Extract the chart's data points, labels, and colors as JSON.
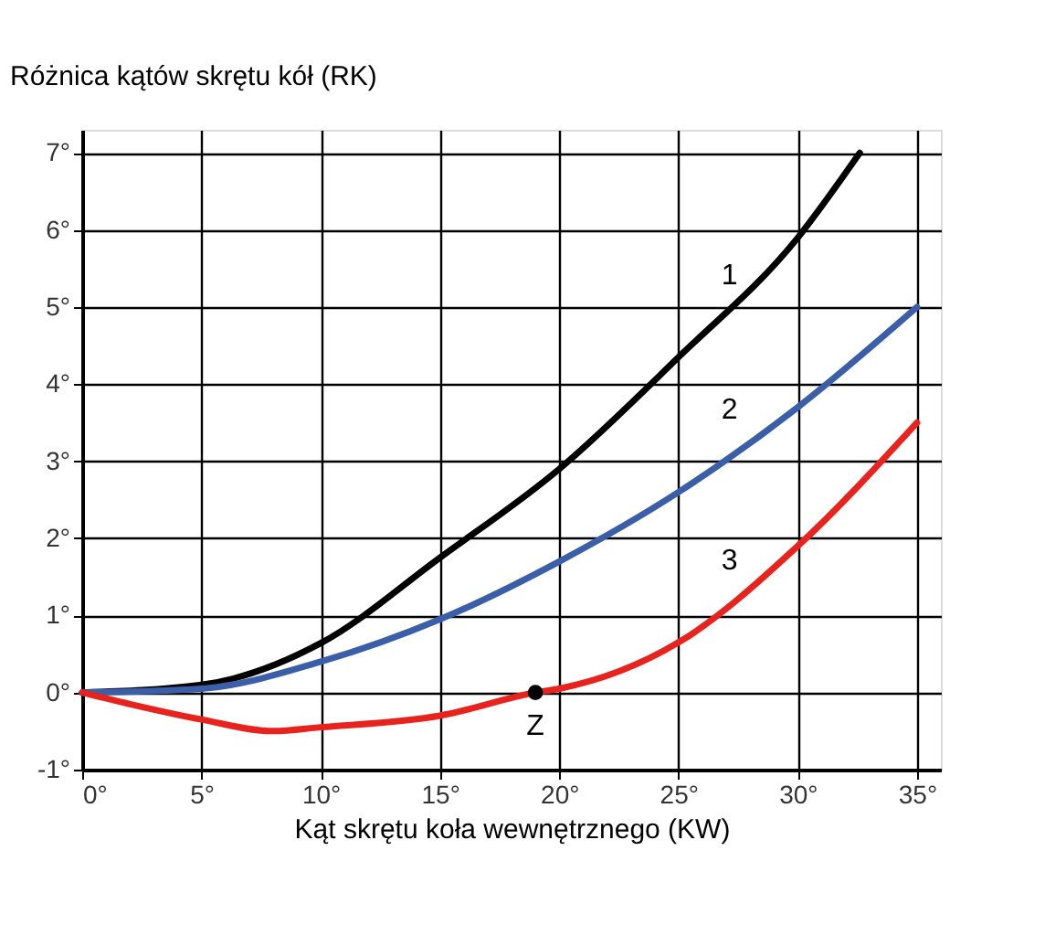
{
  "chart_data": {
    "type": "line",
    "xlabel": "Kąt skrętu koła wewnętrznego (KW)",
    "ylabel": "Różnica kątów skrętu kół (RK)",
    "xlim": [
      0,
      36
    ],
    "ylim": [
      -1,
      7.3
    ],
    "xticks": [
      {
        "value": 0,
        "label": "0°"
      },
      {
        "value": 5,
        "label": "5°"
      },
      {
        "value": 10,
        "label": "10°"
      },
      {
        "value": 15,
        "label": "15°"
      },
      {
        "value": 20,
        "label": "20°"
      },
      {
        "value": 25,
        "label": "25°"
      },
      {
        "value": 30,
        "label": "30°"
      },
      {
        "value": 35,
        "label": "35°"
      }
    ],
    "yticks": [
      {
        "value": -1,
        "label": "-1°"
      },
      {
        "value": 0,
        "label": "0°"
      },
      {
        "value": 1,
        "label": "1°"
      },
      {
        "value": 2,
        "label": "2°"
      },
      {
        "value": 3,
        "label": "3°"
      },
      {
        "value": 4,
        "label": "4°"
      },
      {
        "value": 5,
        "label": "5°"
      },
      {
        "value": 6,
        "label": "6°"
      },
      {
        "value": 7,
        "label": "7°"
      }
    ],
    "grid": true,
    "line_style": "solid",
    "marker": "none",
    "series": [
      {
        "name": "1",
        "color": "#000000",
        "x": [
          0,
          5,
          10,
          15,
          20,
          25,
          30,
          32.6
        ],
        "values": [
          0,
          0.1,
          0.64,
          1.75,
          2.9,
          4.35,
          5.9,
          7.0
        ]
      },
      {
        "name": "2",
        "color": "#3a5fa8",
        "x": [
          0,
          5,
          10,
          15,
          20,
          25,
          30,
          35
        ],
        "values": [
          0,
          0.05,
          0.4,
          0.95,
          1.7,
          2.6,
          3.7,
          5.0
        ]
      },
      {
        "name": "3",
        "color": "#e8231e",
        "x": [
          0,
          2,
          5,
          8,
          10,
          15,
          19,
          20,
          25,
          30,
          35
        ],
        "values": [
          0,
          -0.15,
          -0.35,
          -0.5,
          -0.45,
          -0.3,
          0,
          0.05,
          0.65,
          1.9,
          3.5
        ]
      },
      {
        "name": "Z",
        "type": "scatter",
        "marker": "circle",
        "color": "#000000",
        "x": [
          19
        ],
        "values": [
          0
        ]
      }
    ]
  }
}
